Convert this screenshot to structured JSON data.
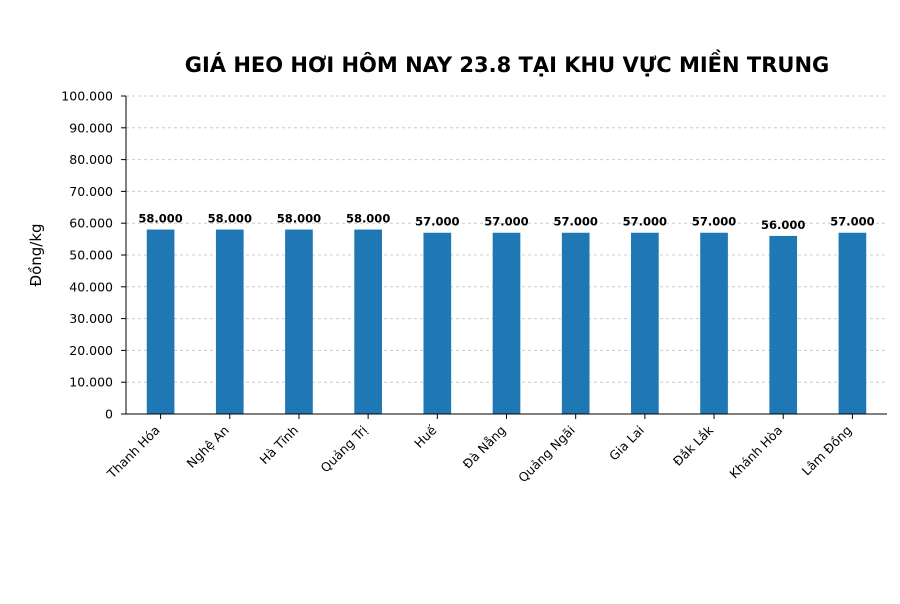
{
  "chart_data": {
    "type": "bar",
    "title": "GIÁ HEO HƠI HÔM NAY 23.8 TẠI KHU VỰC MIỀN TRUNG",
    "xlabel": "",
    "ylabel": "Đồng/kg",
    "categories": [
      "Thanh Hóa",
      "Nghệ An",
      "Hà Tĩnh",
      "Quảng Trị",
      "Huế",
      "Đà Nẵng",
      "Quảng Ngãi",
      "Gia Lai",
      "Đắk Lắk",
      "Khánh Hòa",
      "Lâm Đồng"
    ],
    "values": [
      58000,
      58000,
      58000,
      58000,
      57000,
      57000,
      57000,
      57000,
      57000,
      56000,
      57000
    ],
    "value_labels": [
      "58.000",
      "58.000",
      "58.000",
      "58.000",
      "57.000",
      "57.000",
      "57.000",
      "57.000",
      "57.000",
      "56.000",
      "57.000"
    ],
    "ylim": [
      0,
      100000
    ],
    "yticks": [
      0,
      10000,
      20000,
      30000,
      40000,
      50000,
      60000,
      70000,
      80000,
      90000,
      100000
    ],
    "ytick_labels": [
      "0",
      "10.000",
      "20.000",
      "30.000",
      "40.000",
      "50.000",
      "60.000",
      "70.000",
      "80.000",
      "90.000",
      "100.000"
    ],
    "grid": true,
    "bar_color": "#1f77b4"
  }
}
